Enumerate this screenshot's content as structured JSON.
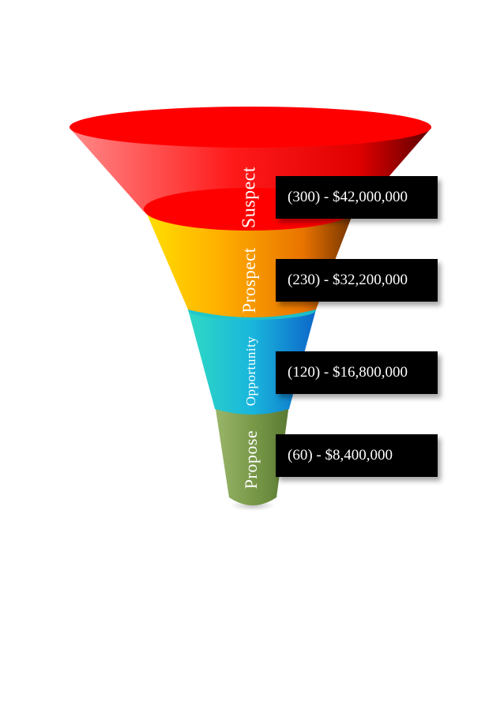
{
  "chart_data": {
    "type": "funnel",
    "stages": [
      {
        "name": "Suspect",
        "count": 300,
        "value_label": "(300) - $42,000,000",
        "amount": 42000000,
        "color": "#ff0000"
      },
      {
        "name": "Prospect",
        "count": 230,
        "value_label": "(230) - $32,200,000",
        "amount": 32200000,
        "color": "#f28a00"
      },
      {
        "name": "Opportunity",
        "count": 120,
        "value_label": "(120) - $16,800,000",
        "amount": 16800000,
        "color": "#1aa7d9"
      },
      {
        "name": "Propose",
        "count": 60,
        "value_label": "(60) - $8,400,000",
        "amount": 8400000,
        "color": "#7a9a4a"
      }
    ]
  }
}
